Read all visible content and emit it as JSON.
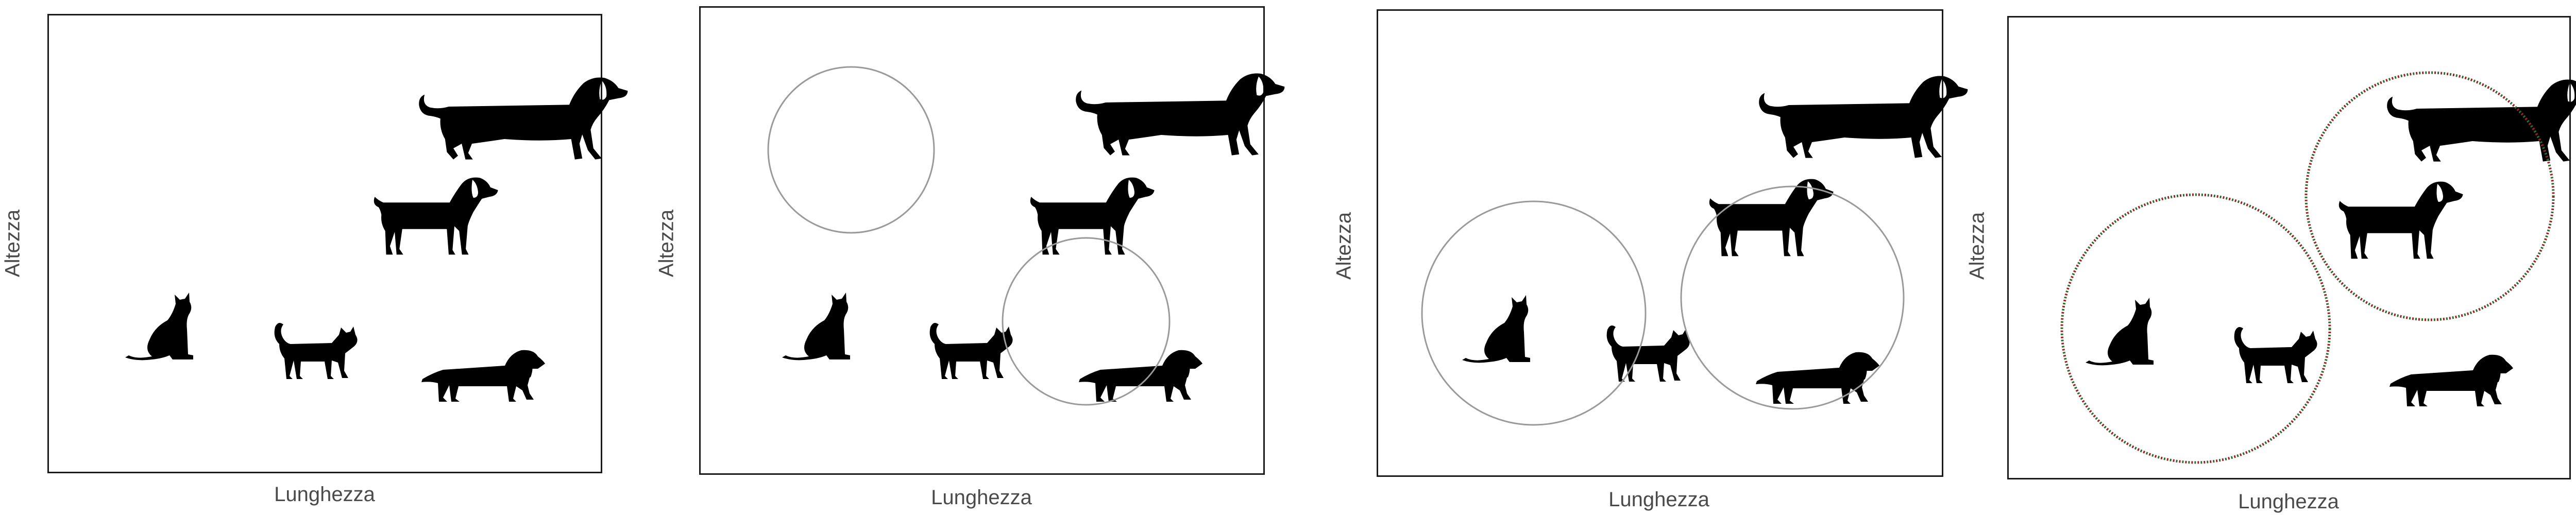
{
  "panels": [
    {
      "xlabel": "Lunghezza",
      "ylabel": "Altezza"
    },
    {
      "xlabel": "Lunghezza",
      "ylabel": "Altezza"
    },
    {
      "xlabel": "Lunghezza",
      "ylabel": "Altezza"
    },
    {
      "xlabel": "Lunghezza",
      "ylabel": "Altezza"
    }
  ],
  "colors": {
    "silhouette": "#000000",
    "frame": "#1a1a1a",
    "circle": "#9a9a9a",
    "cluster_dotted_a": "#2e6b2e",
    "cluster_dotted_b": "#a02020",
    "label": "#4a4a4a"
  },
  "icons": [
    "sitting-cat-icon",
    "walking-cat-icon",
    "dachshund-icon",
    "medium-dog-icon",
    "large-dog-icon"
  ]
}
